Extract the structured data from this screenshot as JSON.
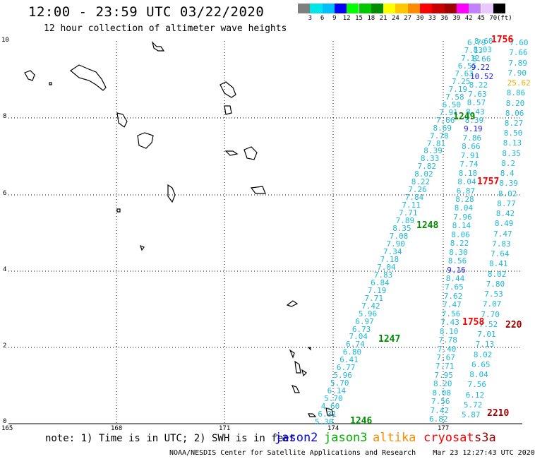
{
  "header": {
    "title": "12:00 - 23:59 UTC 03/22/2020",
    "subtitle": "12 hour collection of altimeter wave heights"
  },
  "color_scale": {
    "unit": "(ft)",
    "labels": [
      "3",
      "6",
      "9",
      "12",
      "15",
      "18",
      "21",
      "24",
      "27",
      "30",
      "33",
      "36",
      "39",
      "42",
      "45",
      "70"
    ],
    "colors": [
      "#7f7f7f",
      "#00e5e5",
      "#00bfff",
      "#0000ff",
      "#00ff00",
      "#00c800",
      "#008c00",
      "#ffff00",
      "#ffc800",
      "#ff8c00",
      "#ff0000",
      "#c80000",
      "#a00000",
      "#ff00ff",
      "#c080ff",
      "#e8c8ff",
      "#000000"
    ]
  },
  "axes": {
    "x_labels": [
      "165",
      "168",
      "171",
      "174",
      "177"
    ],
    "y_labels": [
      "0",
      "2",
      "4",
      "6",
      "8",
      "10"
    ]
  },
  "passes": [
    {
      "id": "left_track",
      "color": "#1fb8d8",
      "points": [
        "5.30",
        "6.31",
        "4.60",
        "5.70",
        "6.14",
        "5.70",
        "5.96",
        "6.77",
        "6.41",
        "6.80",
        "6.74",
        "7.04",
        "6.73",
        "6.97",
        "5.96",
        "7.42",
        "7.71",
        "7.19",
        "6.84",
        "7.83",
        "7.04",
        "7.18",
        "7.34",
        "7.90",
        "7.08",
        "8.35",
        "7.89",
        "7.71",
        "7.11",
        "7.84",
        "7.26",
        "8.22",
        "8.02",
        "7.82",
        "8.33",
        "8.39",
        "7.81",
        "7.78",
        "8.69",
        "7.66",
        "7.91",
        "6.50",
        "7.58",
        "7.19",
        "7.25",
        "7.63",
        "6.55",
        "7.12",
        "7.13",
        "6.79"
      ]
    },
    {
      "id": "mid_track",
      "color": "#1fb8d8",
      "points": [
        "6.82",
        "7.42",
        "7.56",
        "8.08",
        "8.20",
        "7.95",
        "7.71",
        "7.67",
        "7.40",
        "7.78",
        "8.10",
        "7.43",
        "7.56",
        "7.47",
        "7.62",
        "7.65",
        "8.44",
        "9.16",
        "8.56",
        "8.30",
        "8.22",
        "8.06",
        "8.14",
        "7.96",
        "8.04",
        "8.28",
        "6.87",
        "8.04",
        "8.18",
        "7.74",
        "7.91",
        "8.66",
        "7.86",
        "9.19",
        "8.39",
        "8.43",
        "8.57",
        "7.63",
        "8.22",
        "10.52",
        "9.22",
        "8.66",
        "8.03",
        "8.60"
      ]
    },
    {
      "id": "right_track",
      "color": "#1fb8d8",
      "points": [
        "5.87",
        "5.72",
        "6.12",
        "7.56",
        "8.04",
        "6.65",
        "8.02",
        "7.13",
        "7.01",
        "7.52",
        "7.70",
        "7.07",
        "7.53",
        "7.80",
        "8.02",
        "8.41",
        "7.64",
        "7.83",
        "7.47",
        "8.49",
        "8.42",
        "8.77",
        "8.02",
        "8.39",
        "8.4",
        "8.2",
        "8.35",
        "8.13",
        "8.50",
        "8.27",
        "8.06",
        "8.20",
        "8.86",
        "25.62",
        "7.90",
        "7.89",
        "7.66",
        "7.60"
      ]
    }
  ],
  "time_labels": [
    {
      "text": "1246",
      "color": "#008c00"
    },
    {
      "text": "1247",
      "color": "#008c00"
    },
    {
      "text": "1248",
      "color": "#008c00"
    },
    {
      "text": "1249",
      "color": "#008c00"
    },
    {
      "text": "1756",
      "color": "#ff0000"
    },
    {
      "text": "1757",
      "color": "#ff0000"
    },
    {
      "text": "1758",
      "color": "#ff0000"
    },
    {
      "text": "220",
      "color": "#a00000"
    },
    {
      "text": "2210",
      "color": "#a00000"
    }
  ],
  "footer": {
    "note": "note: 1) Time is in UTC; 2) SWH is in feet",
    "satellites": [
      {
        "name": "jason2",
        "color": "#0000ff"
      },
      {
        "name": "jason3",
        "color": "#00b000"
      },
      {
        "name": "altika",
        "color": "#ff8c00"
      },
      {
        "name": "cryosat",
        "color": "#ff0000"
      },
      {
        "name": "s3a",
        "color": "#a00000"
      }
    ],
    "credit": "NOAA/NESDIS Center for Satellite Applications and Research    Mar 23 12:27:43 UTC 2020"
  }
}
